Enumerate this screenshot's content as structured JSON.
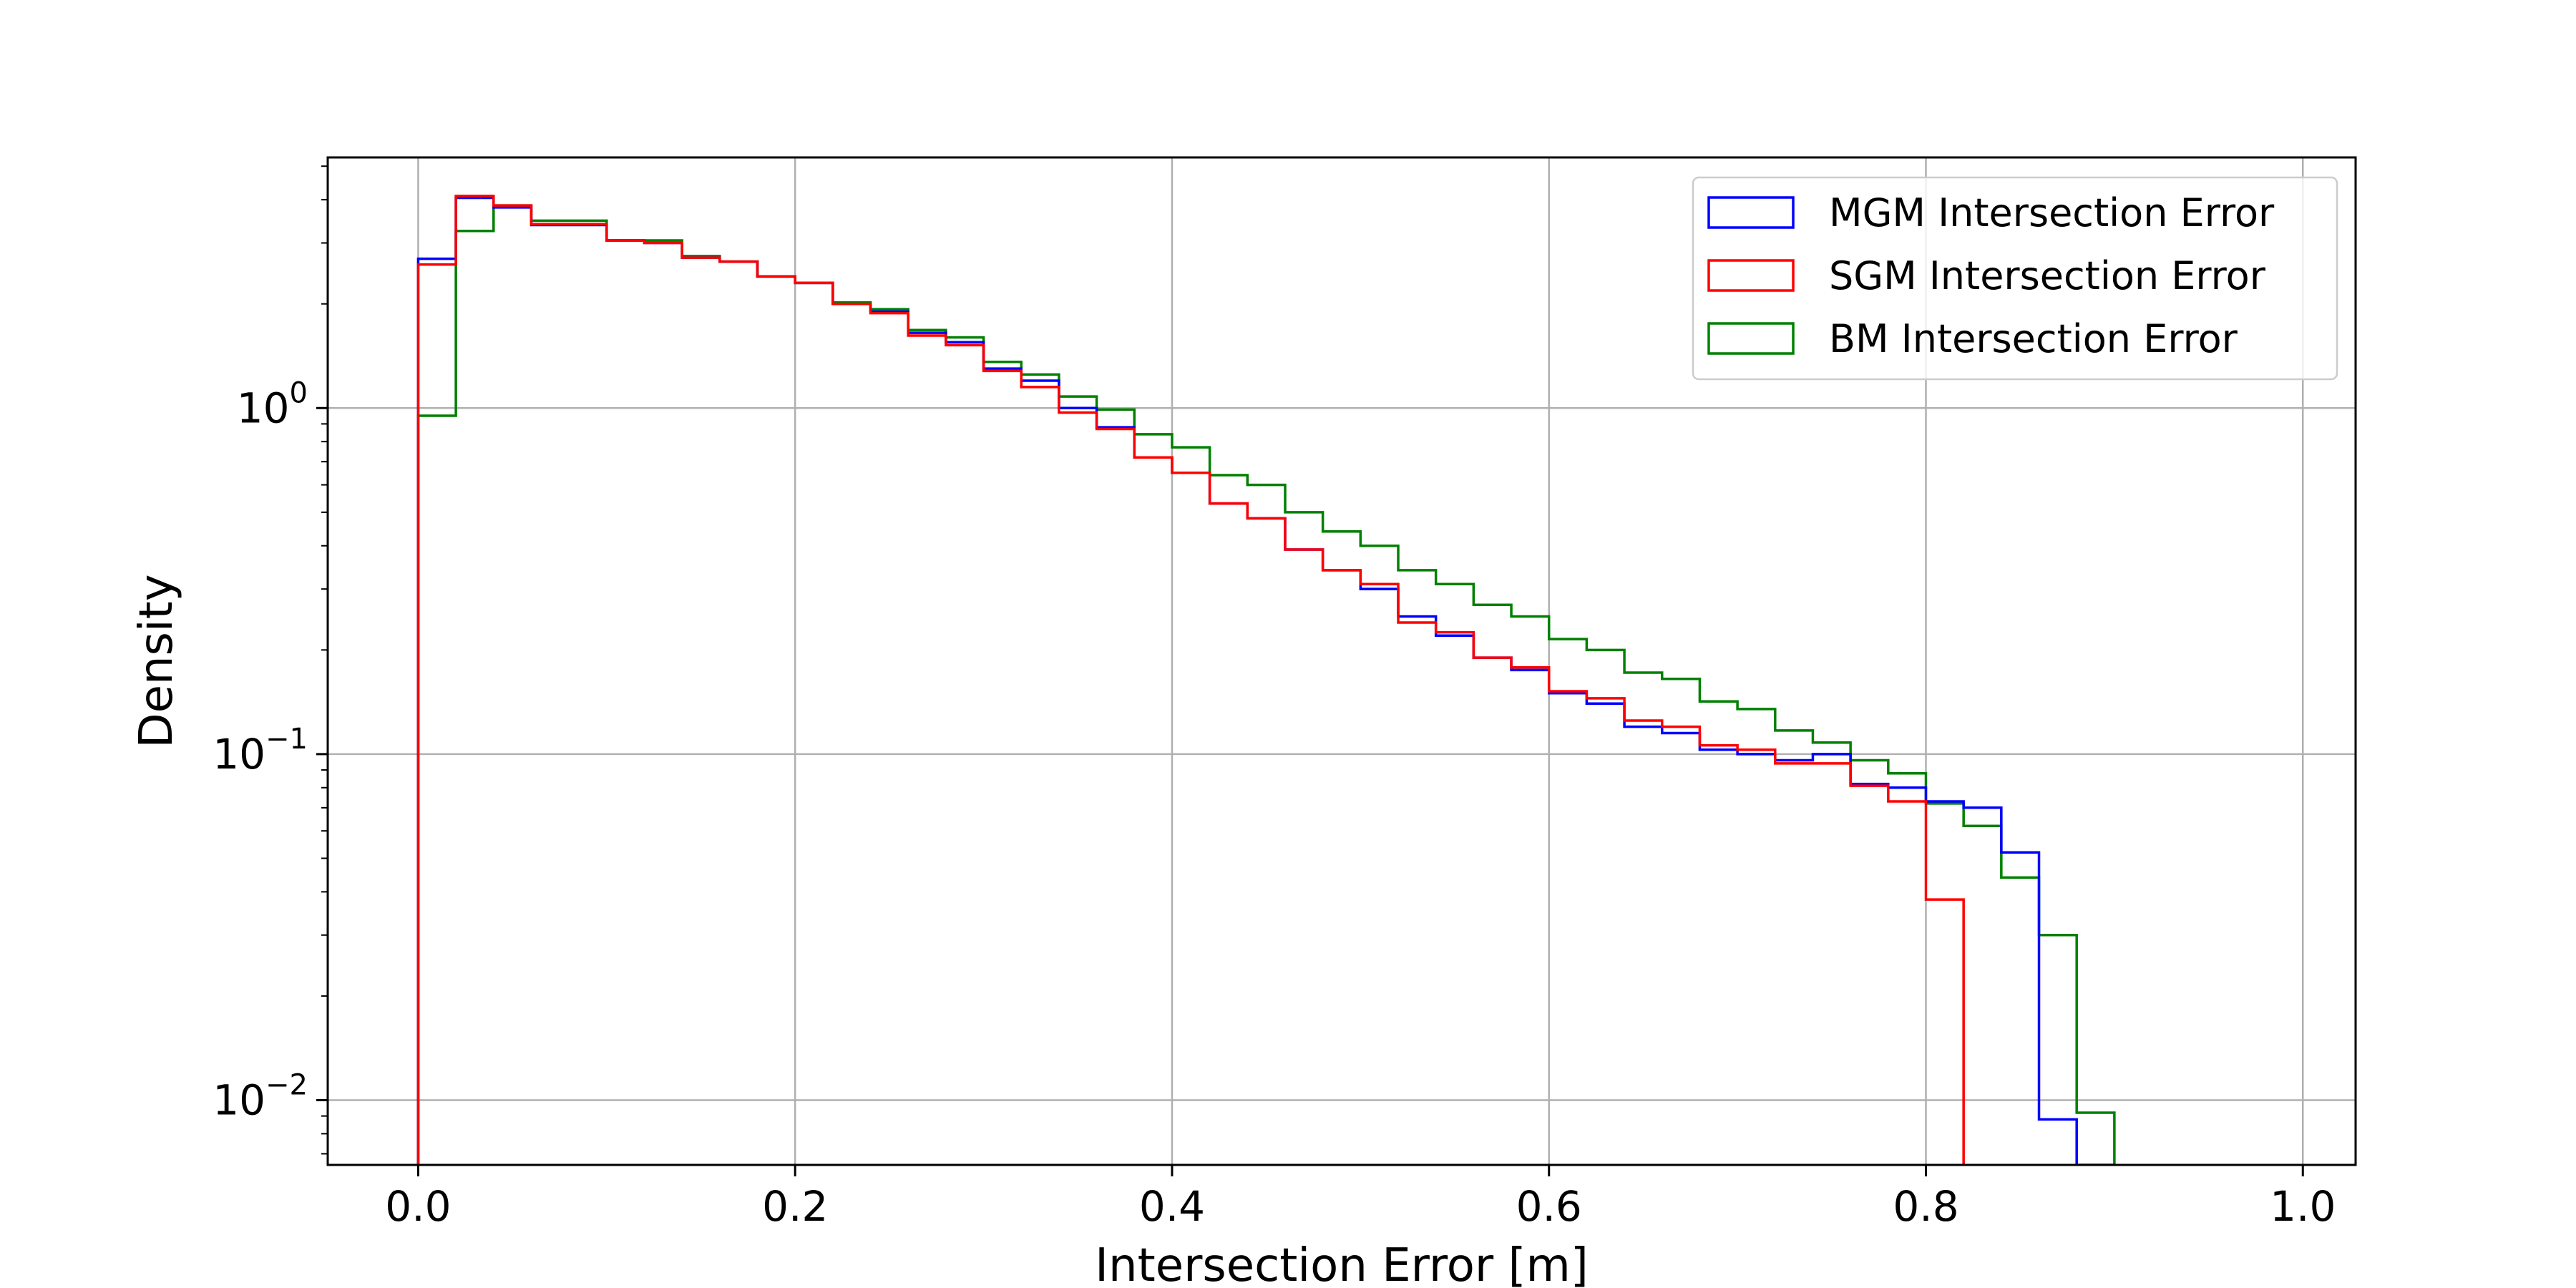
{
  "chart_data": {
    "type": "histogram",
    "xlabel": "Intersection Error [m]",
    "ylabel": "Density",
    "xlim": [
      -0.048,
      1.028
    ],
    "ylim": [
      0.0065,
      5.3
    ],
    "yscale": "log",
    "grid": true,
    "legend_position": "top-right",
    "x_ticks": [
      {
        "value": 0.0,
        "label": "0.0"
      },
      {
        "value": 0.2,
        "label": "0.2"
      },
      {
        "value": 0.4,
        "label": "0.4"
      },
      {
        "value": 0.6,
        "label": "0.6"
      },
      {
        "value": 0.8,
        "label": "0.8"
      },
      {
        "value": 1.0,
        "label": "1.0"
      }
    ],
    "y_ticks": [
      {
        "value": 1,
        "base": "10",
        "exp": "0"
      },
      {
        "value": 0.1,
        "base": "10",
        "exp": "−1"
      },
      {
        "value": 0.01,
        "base": "10",
        "exp": "−2"
      }
    ],
    "bin_edges_start": 0.0,
    "bin_width": 0.02,
    "series": [
      {
        "name": "MGM Intersection Error",
        "color": "#0000ff",
        "values": [
          2.7,
          4.05,
          3.8,
          3.38,
          3.38,
          3.05,
          3.0,
          2.72,
          2.65,
          2.4,
          2.3,
          2.0,
          1.9,
          1.65,
          1.55,
          1.3,
          1.2,
          1.0,
          0.88,
          0.72,
          0.65,
          0.53,
          0.48,
          0.39,
          0.34,
          0.3,
          0.25,
          0.22,
          0.19,
          0.175,
          0.15,
          0.14,
          0.12,
          0.115,
          0.103,
          0.1,
          0.096,
          0.1,
          0.082,
          0.08,
          0.073,
          0.07,
          0.052,
          0.0088,
          0.0065,
          0,
          0,
          0,
          0,
          0
        ]
      },
      {
        "name": "SGM Intersection Error",
        "color": "#ff0000",
        "values": [
          2.6,
          4.1,
          3.85,
          3.4,
          3.4,
          3.05,
          3.0,
          2.72,
          2.65,
          2.4,
          2.3,
          2.0,
          1.88,
          1.62,
          1.52,
          1.28,
          1.15,
          0.97,
          0.87,
          0.72,
          0.65,
          0.53,
          0.48,
          0.39,
          0.34,
          0.31,
          0.24,
          0.225,
          0.19,
          0.178,
          0.152,
          0.145,
          0.125,
          0.12,
          0.106,
          0.103,
          0.094,
          0.094,
          0.081,
          0.073,
          0.038,
          0,
          0,
          0,
          0,
          0,
          0,
          0,
          0,
          0
        ]
      },
      {
        "name": "BM Intersection Error",
        "color": "#008000",
        "values": [
          0.95,
          3.25,
          3.85,
          3.48,
          3.48,
          3.05,
          3.05,
          2.75,
          2.65,
          2.4,
          2.3,
          2.02,
          1.93,
          1.68,
          1.6,
          1.36,
          1.25,
          1.08,
          0.99,
          0.84,
          0.77,
          0.64,
          0.6,
          0.5,
          0.44,
          0.4,
          0.34,
          0.31,
          0.27,
          0.25,
          0.215,
          0.2,
          0.172,
          0.165,
          0.142,
          0.135,
          0.117,
          0.108,
          0.096,
          0.088,
          0.072,
          0.062,
          0.044,
          0.03,
          0.0092,
          0,
          0,
          0,
          0,
          0
        ]
      }
    ]
  }
}
